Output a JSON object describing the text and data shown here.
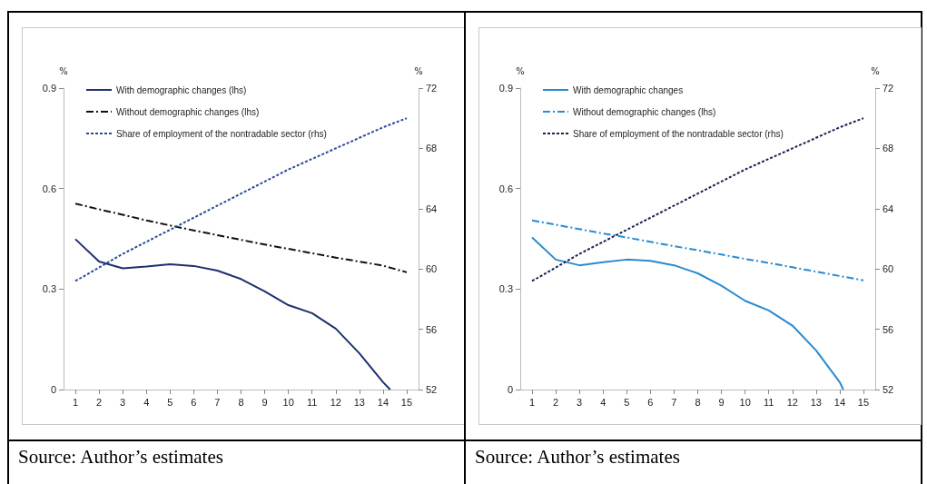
{
  "chart_data": [
    {
      "type": "line",
      "ylabel": "%",
      "y2label": "%",
      "annotations": [
        "Source: Author’s estimates"
      ],
      "x": [
        1,
        2,
        3,
        4,
        5,
        6,
        7,
        8,
        9,
        10,
        11,
        12,
        13,
        14,
        15
      ],
      "xlim": [
        0.5,
        15.5
      ],
      "xticks": [
        1,
        2,
        3,
        4,
        5,
        6,
        7,
        8,
        9,
        10,
        11,
        12,
        13,
        14,
        15
      ],
      "ylim": [
        0,
        0.9
      ],
      "yticks": [
        0,
        0.3,
        0.6,
        0.9
      ],
      "y2lim": [
        52,
        72
      ],
      "y2ticks": [
        52,
        56,
        60,
        64,
        68,
        72
      ],
      "grid": false,
      "legend": "top left",
      "marker": "none",
      "series": [
        {
          "name": "With demographic changes (lhs)",
          "color": "#1f2f6e",
          "line_style": "solid",
          "x": [
            1,
            2,
            3,
            4,
            5,
            6,
            7,
            8,
            9,
            10,
            11,
            12,
            13,
            14,
            14.3
          ],
          "values": [
            0.449,
            0.382,
            0.362,
            0.367,
            0.374,
            0.369,
            0.355,
            0.33,
            0.293,
            0.252,
            0.228,
            0.182,
            0.108,
            0.022,
            0
          ]
        },
        {
          "name": "Without demographic changes (lhs)",
          "color": "#111111",
          "line_style": "dashdot",
          "values": [
            0.555,
            0.538,
            0.522,
            0.505,
            0.49,
            0.475,
            0.461,
            0.447,
            0.433,
            0.42,
            0.407,
            0.394,
            0.382,
            0.37,
            0.35
          ]
        },
        {
          "name": "Share of employment of the nontradable sector (rhs)",
          "color": "#2a4a9a",
          "line_style": "dotted",
          "axis": "y2",
          "values": [
            59.2,
            60.1,
            61.0,
            61.8,
            62.6,
            63.4,
            64.2,
            65.0,
            65.8,
            66.6,
            67.3,
            68.0,
            68.7,
            69.4,
            70.0
          ]
        }
      ]
    },
    {
      "type": "line",
      "ylabel": "%",
      "y2label": "%",
      "annotations": [
        "Source: Author’s estimates"
      ],
      "x": [
        1,
        2,
        3,
        4,
        5,
        6,
        7,
        8,
        9,
        10,
        11,
        12,
        13,
        14,
        15
      ],
      "xlim": [
        0.5,
        15.5
      ],
      "xticks": [
        1,
        2,
        3,
        4,
        5,
        6,
        7,
        8,
        9,
        10,
        11,
        12,
        13,
        14,
        15
      ],
      "ylim": [
        0,
        0.9
      ],
      "yticks": [
        0,
        0.3,
        0.6,
        0.9
      ],
      "y2lim": [
        52,
        72
      ],
      "y2ticks": [
        52,
        56,
        60,
        64,
        68,
        72
      ],
      "grid": false,
      "legend": "top left",
      "marker": "none",
      "series": [
        {
          "name": "With demographic changes",
          "color": "#2a8ad0",
          "line_style": "solid",
          "x": [
            1,
            2,
            3,
            4,
            5,
            6,
            7,
            8,
            9,
            10,
            11,
            12,
            13,
            14,
            14.15
          ],
          "values": [
            0.454,
            0.388,
            0.371,
            0.38,
            0.388,
            0.384,
            0.371,
            0.347,
            0.31,
            0.265,
            0.236,
            0.191,
            0.117,
            0.022,
            0
          ]
        },
        {
          "name": "Without demographic changes (lhs)",
          "color": "#2a8ad0",
          "line_style": "dashdot",
          "values": [
            0.505,
            0.492,
            0.479,
            0.466,
            0.454,
            0.441,
            0.428,
            0.416,
            0.403,
            0.39,
            0.378,
            0.365,
            0.352,
            0.339,
            0.326
          ]
        },
        {
          "name": "Share of employment of the nontradable sector (rhs)",
          "color": "#1f2050",
          "line_style": "dotted",
          "axis": "y2",
          "values": [
            59.2,
            60.1,
            61.0,
            61.8,
            62.6,
            63.4,
            64.2,
            65.0,
            65.8,
            66.6,
            67.3,
            68.0,
            68.7,
            69.4,
            70.0
          ]
        }
      ]
    }
  ]
}
